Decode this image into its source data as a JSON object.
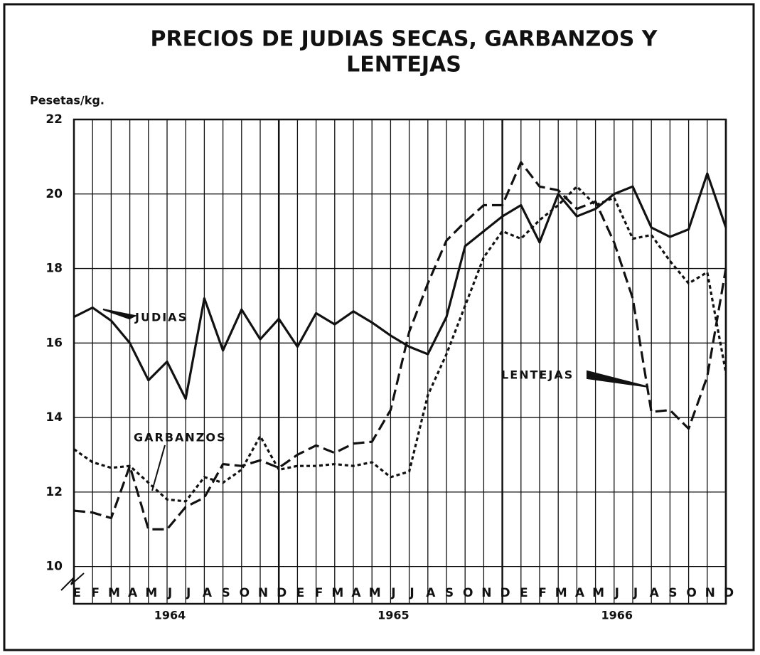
{
  "chart_data": {
    "type": "line",
    "title": [
      "PRECIOS DE JUDIAS SECAS, GARBANZOS Y",
      "LENTEJAS"
    ],
    "y_label": "Pesetas/kg.",
    "categories": [
      "E",
      "F",
      "M",
      "A",
      "M",
      "J",
      "J",
      "A",
      "S",
      "O",
      "N",
      "D",
      "E",
      "F",
      "M",
      "A",
      "M",
      "J",
      "J",
      "A",
      "S",
      "O",
      "N",
      "D",
      "E",
      "F",
      "M",
      "A",
      "M",
      "J",
      "J",
      "A",
      "S",
      "O",
      "N",
      "D"
    ],
    "years": [
      "1964",
      "1965",
      "1966"
    ],
    "ylim": [
      9,
      22
    ],
    "yticks": [
      10,
      12,
      14,
      16,
      18,
      20,
      22
    ],
    "grid": true,
    "series": [
      {
        "name": "JUDIAS",
        "color": "#111111",
        "style": "solid",
        "values": [
          16.7,
          16.95,
          16.6,
          16.0,
          15.0,
          15.5,
          14.5,
          17.2,
          15.8,
          16.9,
          16.1,
          16.65,
          15.9,
          16.8,
          16.5,
          16.85,
          16.55,
          16.2,
          15.9,
          15.7,
          16.7,
          18.6,
          19.0,
          19.4,
          19.7,
          18.7,
          20.0,
          19.4,
          19.6,
          20.0,
          20.2,
          19.1,
          18.85,
          19.05,
          20.55,
          19.1
        ]
      },
      {
        "name": "GARBANZOS",
        "color": "#111111",
        "style": "dotted",
        "values": [
          13.15,
          12.8,
          12.65,
          12.7,
          12.25,
          11.8,
          11.75,
          12.4,
          12.25,
          12.6,
          13.5,
          12.6,
          12.7,
          12.7,
          12.75,
          12.7,
          12.8,
          12.4,
          12.55,
          14.6,
          15.7,
          17.0,
          18.3,
          19.0,
          18.8,
          19.3,
          19.7,
          20.2,
          19.7,
          19.9,
          18.8,
          18.9,
          18.2,
          17.6,
          17.9,
          15.2
        ]
      },
      {
        "name": "LENTEJAS",
        "color": "#111111",
        "style": "dashed",
        "values": [
          11.5,
          11.45,
          11.3,
          12.7,
          11.0,
          11.0,
          11.6,
          11.85,
          12.75,
          12.7,
          12.85,
          12.65,
          13.0,
          13.25,
          13.05,
          13.3,
          13.35,
          14.2,
          16.3,
          17.6,
          18.75,
          19.25,
          19.7,
          19.7,
          20.85,
          20.2,
          20.1,
          19.6,
          19.8,
          18.7,
          17.2,
          14.15,
          14.2,
          13.7,
          15.1,
          18.0
        ]
      }
    ]
  }
}
